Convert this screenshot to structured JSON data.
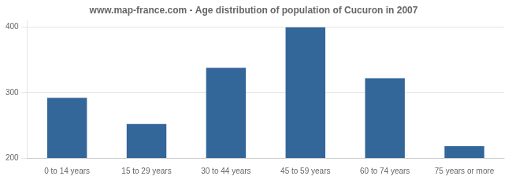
{
  "chart_data": {
    "type": "bar",
    "title": "www.map-france.com - Age distribution of population of Cucuron in 2007",
    "categories": [
      "0 to 14 years",
      "15 to 29 years",
      "30 to 44 years",
      "45 to 59 years",
      "60 to 74 years",
      "75 years or more"
    ],
    "values": [
      292,
      252,
      338,
      400,
      322,
      218
    ],
    "color": "#336699",
    "ylim": [
      200,
      410
    ],
    "yticks": [
      200,
      300,
      400
    ],
    "grid": true
  }
}
